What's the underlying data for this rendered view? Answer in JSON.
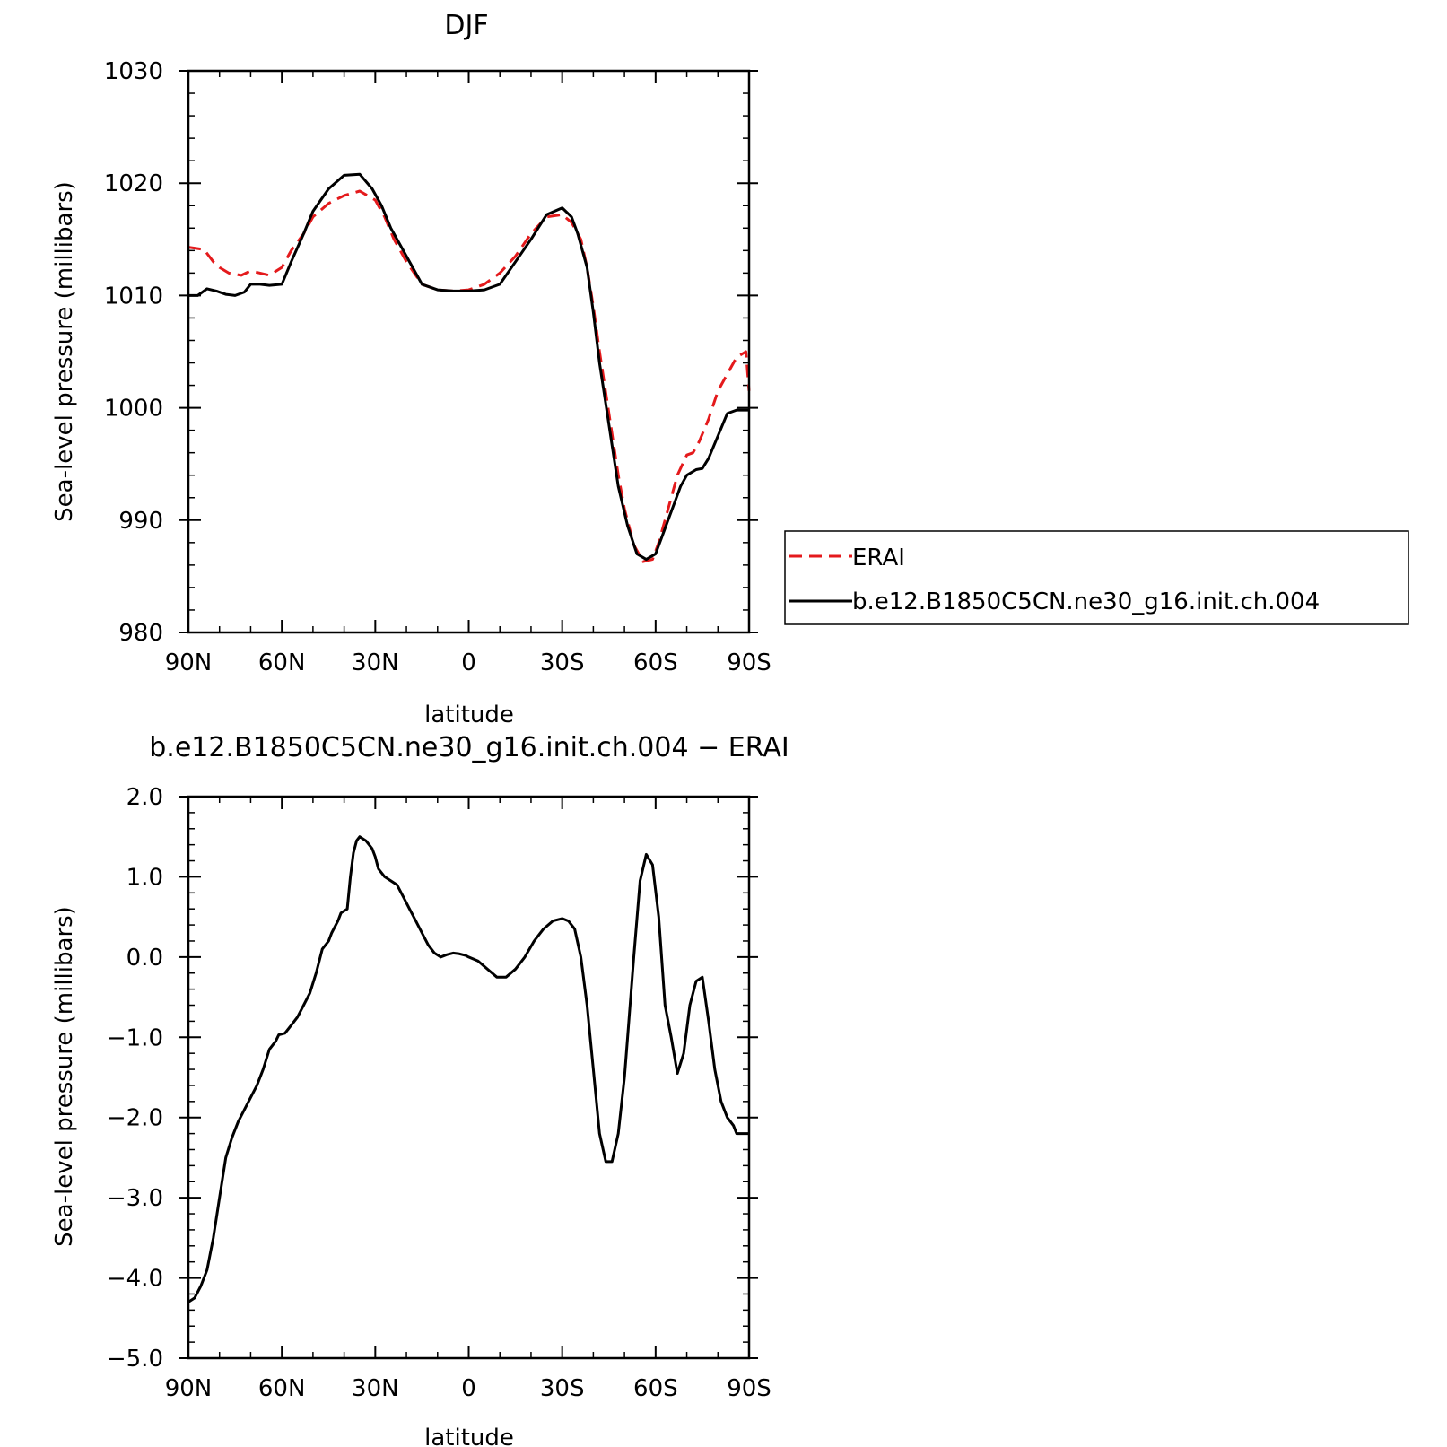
{
  "chart_data": [
    {
      "type": "line",
      "title": "DJF",
      "xlabel": "latitude",
      "ylabel": "Sea-level pressure (millibars)",
      "xlim": [
        90,
        -90
      ],
      "ylim": [
        980,
        1030
      ],
      "xticks": [
        90,
        60,
        30,
        0,
        -30,
        -60,
        -90
      ],
      "xtick_labels": [
        "90N",
        "60N",
        "30N",
        "0",
        "30S",
        "60S",
        "90S"
      ],
      "yticks": [
        980,
        990,
        1000,
        1010,
        1020,
        1030
      ],
      "ytick_labels": [
        "980",
        "990",
        "1000",
        "1010",
        "1020",
        "1030"
      ],
      "legend": "right",
      "series": [
        {
          "name": "ERAI",
          "color": "#e41a1c",
          "dash": "dashed",
          "x": [
            90,
            85,
            82,
            80,
            77,
            73,
            70,
            67,
            64,
            60,
            57,
            53,
            50,
            45,
            40,
            35,
            30,
            27,
            24,
            20,
            15,
            10,
            5,
            0,
            -5,
            -10,
            -15,
            -20,
            -25,
            -30,
            -33,
            -36,
            -38,
            -40,
            -42,
            -45,
            -48,
            -50,
            -53,
            -56,
            -59,
            -61,
            -63,
            -65,
            -67,
            -70,
            -72,
            -74,
            -77,
            -80,
            -83,
            -86,
            -89,
            -90
          ],
          "values": [
            1014.3,
            1014.1,
            1013.0,
            1012.5,
            1012.0,
            1011.8,
            1012.2,
            1012.0,
            1011.8,
            1012.5,
            1014.0,
            1015.5,
            1017.0,
            1018.2,
            1018.9,
            1019.3,
            1018.5,
            1017.0,
            1015.0,
            1013.0,
            1011.0,
            1010.5,
            1010.4,
            1010.5,
            1011.0,
            1012.0,
            1013.5,
            1015.5,
            1017.0,
            1017.2,
            1016.5,
            1015.0,
            1012.5,
            1009.0,
            1005.0,
            999.5,
            994.0,
            991.0,
            987.8,
            986.3,
            986.5,
            988.0,
            990.0,
            992.0,
            994.0,
            995.8,
            996.0,
            997.0,
            999.0,
            1001.5,
            1003.0,
            1004.5,
            1005.0,
            1001.5
          ]
        },
        {
          "name": "b.e12.B1850C5CN.ne30_g16.init.ch.004",
          "color": "#000000",
          "dash": "solid",
          "x": [
            90,
            87,
            84,
            81,
            78,
            75,
            72,
            70,
            67,
            64,
            60,
            57,
            53,
            50,
            45,
            40,
            35,
            31,
            28,
            25,
            20,
            15,
            10,
            5,
            0,
            -5,
            -10,
            -15,
            -20,
            -25,
            -30,
            -33,
            -35,
            -38,
            -40,
            -42,
            -45,
            -48,
            -51,
            -54,
            -57,
            -60,
            -62,
            -64,
            -66,
            -68,
            -70,
            -73,
            -75,
            -77,
            -80,
            -83,
            -86,
            -89,
            -90
          ],
          "values": [
            1010.0,
            1010.0,
            1010.6,
            1010.4,
            1010.1,
            1010.0,
            1010.3,
            1011.0,
            1011.0,
            1010.9,
            1011.0,
            1013.0,
            1015.5,
            1017.5,
            1019.5,
            1020.7,
            1020.8,
            1019.5,
            1018.0,
            1016.0,
            1013.5,
            1011.0,
            1010.5,
            1010.4,
            1010.4,
            1010.5,
            1011.0,
            1013.0,
            1015.0,
            1017.2,
            1017.8,
            1017.0,
            1015.5,
            1012.5,
            1008.5,
            1004.0,
            998.5,
            993.0,
            989.5,
            987.0,
            986.5,
            987.0,
            988.5,
            990.0,
            991.5,
            993.0,
            994.0,
            994.5,
            994.6,
            995.5,
            997.5,
            999.5,
            999.8,
            999.8,
            999.8
          ]
        }
      ]
    },
    {
      "type": "line",
      "title": "b.e12.B1850C5CN.ne30_g16.init.ch.004  −  ERAI",
      "xlabel": "latitude",
      "ylabel": "Sea-level pressure (millibars)",
      "xlim": [
        90,
        -90
      ],
      "ylim": [
        -5.0,
        2.0
      ],
      "xticks": [
        90,
        60,
        30,
        0,
        -30,
        -60,
        -90
      ],
      "xtick_labels": [
        "90N",
        "60N",
        "30N",
        "0",
        "30S",
        "60S",
        "90S"
      ],
      "yticks": [
        2.0,
        1.0,
        0.0,
        -1.0,
        -2.0,
        -3.0,
        -4.0,
        -5.0
      ],
      "ytick_labels": [
        "2.0",
        "1.0",
        "0.0",
        "−1.0",
        "−2.0",
        "−3.0",
        "−4.0",
        "−5.0"
      ],
      "series": [
        {
          "color": "#000000",
          "dash": "solid",
          "x": [
            90,
            88,
            86,
            84,
            82,
            80,
            78,
            76,
            74,
            72,
            70,
            68,
            66,
            64,
            62,
            61,
            59,
            57,
            55,
            53,
            51,
            49,
            47,
            45,
            44,
            42,
            41,
            39,
            38,
            37,
            36,
            35,
            33,
            31,
            30,
            29,
            27,
            25,
            23,
            21,
            19,
            17,
            15,
            13,
            11,
            9,
            7,
            5,
            3,
            1,
            0,
            -3,
            -6,
            -9,
            -12,
            -15,
            -18,
            -21,
            -24,
            -27,
            -30,
            -32,
            -34,
            -36,
            -38,
            -40,
            -42,
            -44,
            -46,
            -48,
            -50,
            -51,
            -53,
            -55,
            -57,
            -59,
            -61,
            -63,
            -65,
            -67,
            -69,
            -71,
            -73,
            -75,
            -77,
            -79,
            -81,
            -83,
            -85,
            -86,
            -87,
            -88,
            -89,
            -90
          ],
          "values": [
            -4.3,
            -4.25,
            -4.1,
            -3.9,
            -3.5,
            -3.0,
            -2.5,
            -2.25,
            -2.05,
            -1.9,
            -1.75,
            -1.6,
            -1.4,
            -1.15,
            -1.05,
            -0.97,
            -0.95,
            -0.85,
            -0.75,
            -0.6,
            -0.45,
            -0.2,
            0.1,
            0.2,
            0.3,
            0.45,
            0.55,
            0.6,
            1.0,
            1.3,
            1.45,
            1.5,
            1.45,
            1.35,
            1.25,
            1.1,
            1.0,
            0.95,
            0.9,
            0.75,
            0.6,
            0.45,
            0.3,
            0.15,
            0.05,
            0.0,
            0.03,
            0.05,
            0.04,
            0.02,
            0.0,
            -0.05,
            -0.15,
            -0.25,
            -0.25,
            -0.15,
            0.0,
            0.2,
            0.35,
            0.45,
            0.48,
            0.45,
            0.35,
            0.0,
            -0.6,
            -1.4,
            -2.2,
            -2.55,
            -2.55,
            -2.2,
            -1.5,
            -1.0,
            0.0,
            0.95,
            1.28,
            1.15,
            0.5,
            -0.6,
            -1.0,
            -1.45,
            -1.2,
            -0.6,
            -0.3,
            -0.25,
            -0.8,
            -1.4,
            -1.8,
            -2.0,
            -2.1,
            -2.2,
            -2.2,
            -2.2,
            -2.2,
            -2.2
          ]
        }
      ]
    }
  ]
}
